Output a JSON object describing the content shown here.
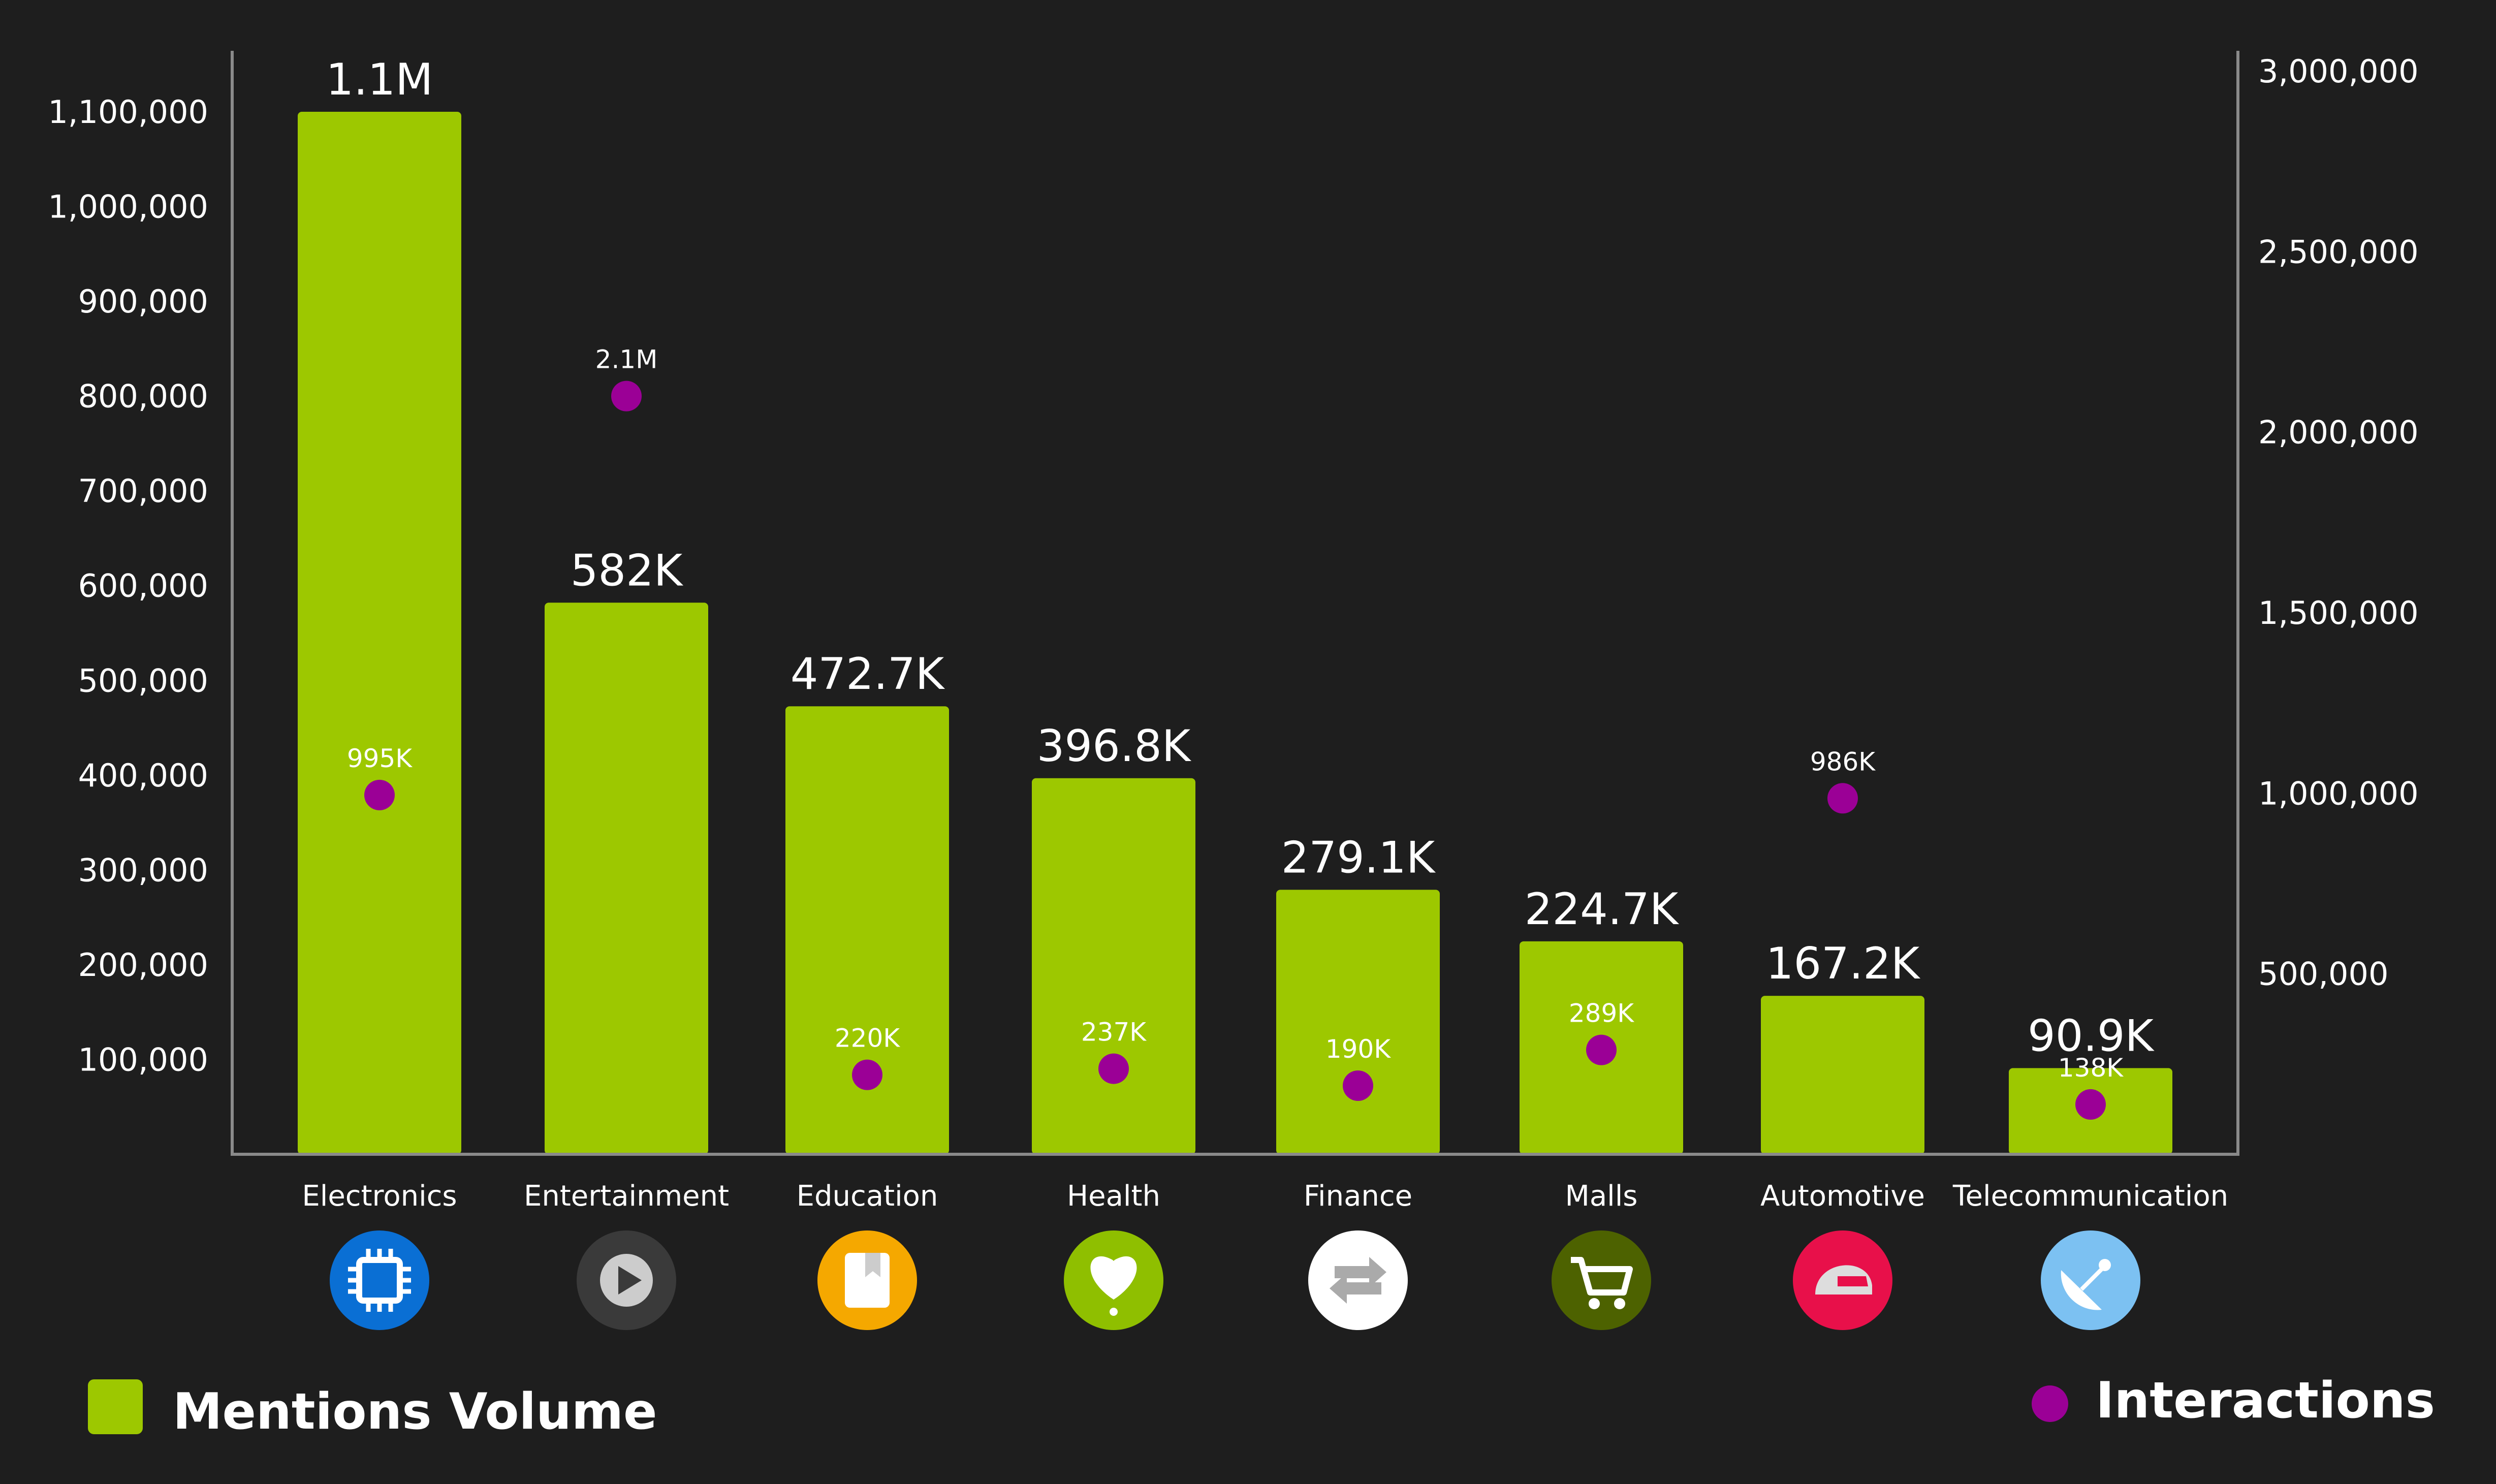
{
  "chart_data": {
    "type": "bar",
    "categories": [
      "Electronics",
      "Entertainment",
      "Education",
      "Health",
      "Finance",
      "Malls",
      "Automotive",
      "Telecommunication"
    ],
    "series": [
      {
        "name": "Mentions Volume",
        "axis": "left",
        "color": "#9dc800",
        "values": [
          1100000,
          582000,
          472700,
          396800,
          279100,
          224700,
          167200,
          90900
        ],
        "labels": [
          "1.1M",
          "582K",
          "472.7K",
          "396.8K",
          "279.1K",
          "224.7K",
          "167.2K",
          "90.9K"
        ]
      },
      {
        "name": "Interactions",
        "axis": "right",
        "type": "scatter",
        "color": "#9b0096",
        "values": [
          995000,
          2100000,
          220000,
          237000,
          190000,
          289000,
          986000,
          138000
        ],
        "labels": [
          "995K",
          "2.1M",
          "220K",
          "237K",
          "190K",
          "289K",
          "986K",
          "138K"
        ]
      }
    ],
    "y_left": {
      "range": [
        0,
        1150000
      ],
      "ticks": [
        100000,
        200000,
        300000,
        400000,
        500000,
        600000,
        700000,
        800000,
        900000,
        1000000,
        1100000
      ],
      "tick_labels": [
        "100,000",
        "200,000",
        "300,000",
        "400,000",
        "500,000",
        "600,000",
        "700,000",
        "800,000",
        "900,000",
        "1,000,000",
        "1,100,000"
      ]
    },
    "y_right": {
      "range": [
        0,
        3000000
      ],
      "ticks": [
        500000,
        1000000,
        1500000,
        2000000,
        2500000,
        3000000
      ],
      "tick_labels": [
        "500,000",
        "1,000,000",
        "1,500,000",
        "2,000,000",
        "2,500,000",
        "3,000,000"
      ]
    },
    "grid": false,
    "legend_placement": "bottom"
  },
  "icons": [
    {
      "name": "chip-icon",
      "bg": "#0a6fd4",
      "fg": "#ffffff"
    },
    {
      "name": "play-icon",
      "bg": "#3a3a3a",
      "fg": "#cccccc"
    },
    {
      "name": "book-icon",
      "bg": "#f5a800",
      "fg": "#ffffff"
    },
    {
      "name": "heart-icon",
      "bg": "#8fbf00",
      "fg": "#ffffff"
    },
    {
      "name": "transfer-arrows-icon",
      "bg": "#ffffff",
      "fg": "#aaaaaa"
    },
    {
      "name": "cart-icon",
      "bg": "#4d6200",
      "fg": "#ffffff"
    },
    {
      "name": "helmet-icon",
      "bg": "#e8104a",
      "fg": "#dddddd"
    },
    {
      "name": "satellite-dish-icon",
      "bg": "#7cc1f2",
      "fg": "#ffffff"
    }
  ]
}
